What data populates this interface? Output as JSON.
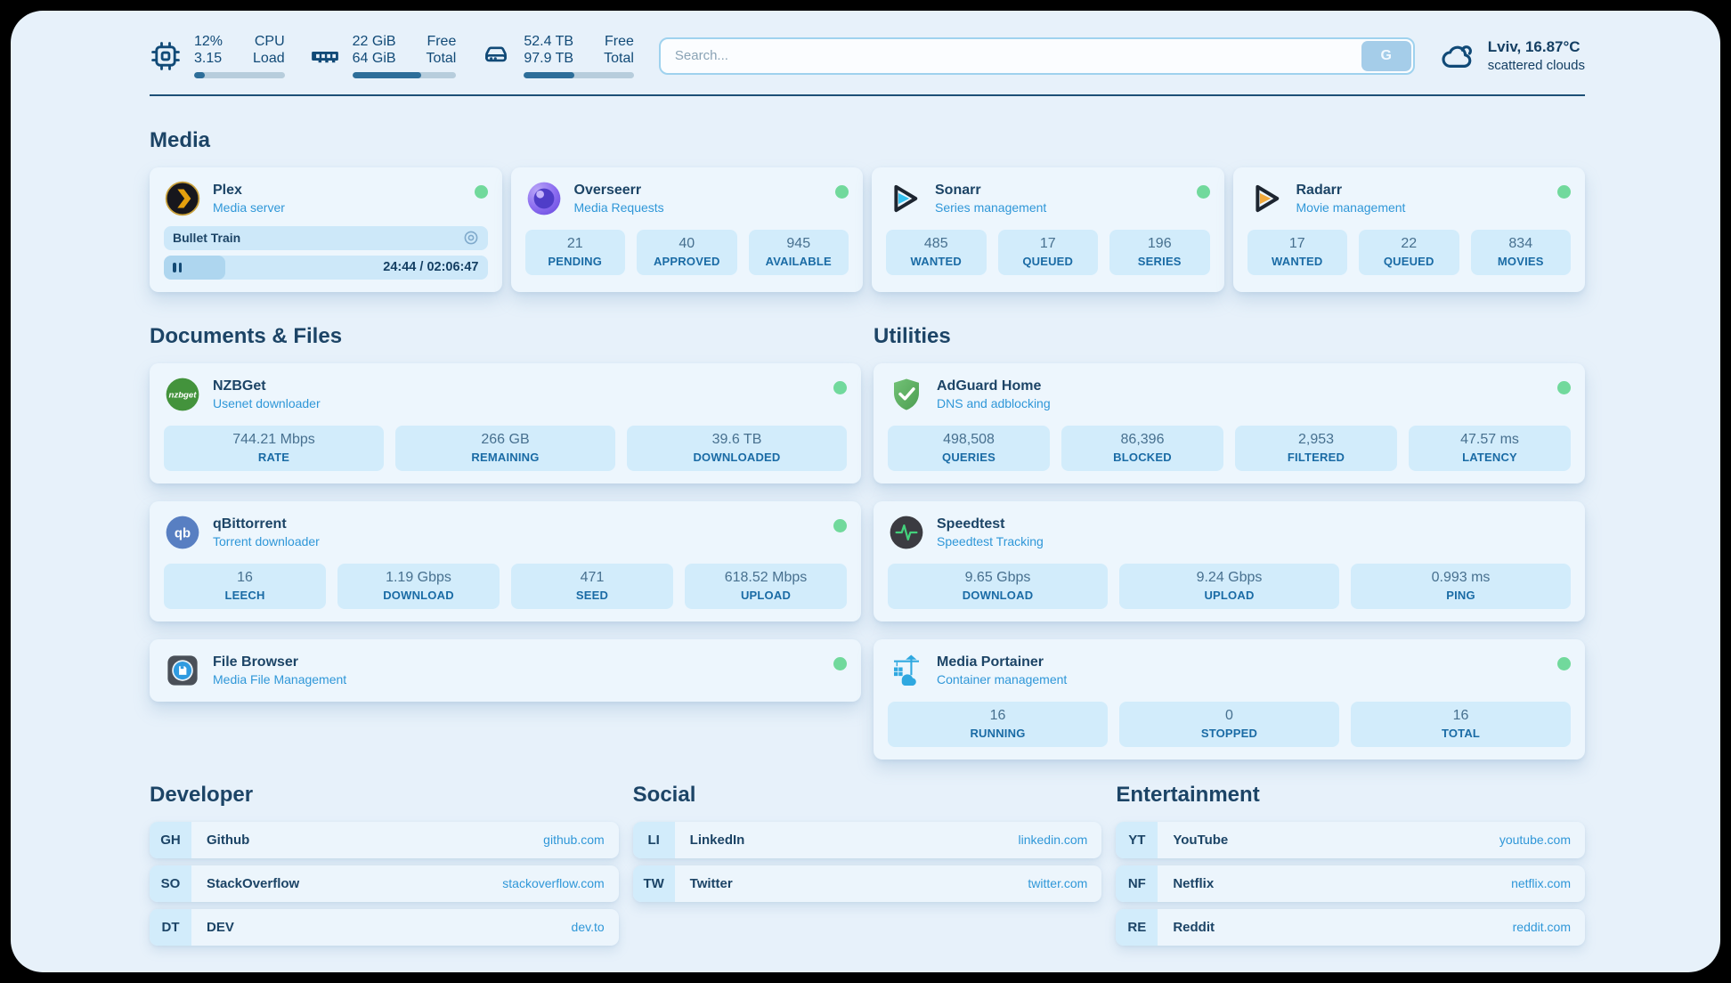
{
  "colors": {
    "accent": "#2f97d8",
    "navy": "#1c4466",
    "online_green": "#71d99c",
    "stat_box_bg": "#d2ecfb",
    "panel_bg": "#e7f1fa"
  },
  "header": {
    "system": {
      "cpu": {
        "icon": "cpu-chip-icon",
        "values": [
          "12%",
          "3.15"
        ],
        "labels": [
          "CPU",
          "Load"
        ],
        "bar_width": "12%"
      },
      "memory": {
        "icon": "ram-icon",
        "values": [
          "22 GiB",
          "64 GiB"
        ],
        "labels": [
          "Free",
          "Total"
        ],
        "bar_width": "66%"
      },
      "disk": {
        "icon": "disk-icon",
        "values": [
          "52.4 TB",
          "97.9 TB"
        ],
        "labels": [
          "Free",
          "Total"
        ],
        "bar_width": "46%"
      }
    },
    "search": {
      "placeholder": "Search...",
      "button": "G"
    },
    "weather": {
      "icon": "cloud-icon",
      "location": "Lviv, 16.87°C",
      "condition": "scattered clouds"
    }
  },
  "media": {
    "title": "Media",
    "plex": {
      "name": "Plex",
      "subtitle": "Media server",
      "status": "online",
      "now_playing": {
        "title": "Bullet Train",
        "time": "24:44 / 02:06:47",
        "progress_width": "19%"
      }
    },
    "overseerr": {
      "name": "Overseerr",
      "subtitle": "Media Requests",
      "status": "online",
      "stats": [
        {
          "value": "21",
          "label": "PENDING"
        },
        {
          "value": "40",
          "label": "APPROVED"
        },
        {
          "value": "945",
          "label": "AVAILABLE"
        }
      ]
    },
    "sonarr": {
      "name": "Sonarr",
      "subtitle": "Series management",
      "status": "online",
      "stats": [
        {
          "value": "485",
          "label": "WANTED"
        },
        {
          "value": "17",
          "label": "QUEUED"
        },
        {
          "value": "196",
          "label": "SERIES"
        }
      ]
    },
    "radarr": {
      "name": "Radarr",
      "subtitle": "Movie management",
      "status": "online",
      "stats": [
        {
          "value": "17",
          "label": "WANTED"
        },
        {
          "value": "22",
          "label": "QUEUED"
        },
        {
          "value": "834",
          "label": "MOVIES"
        }
      ]
    }
  },
  "documents": {
    "title": "Documents & Files",
    "nzbget": {
      "name": "NZBGet",
      "subtitle": "Usenet downloader",
      "status": "online",
      "icon_text": "nzbget",
      "stats": [
        {
          "value": "744.21 Mbps",
          "label": "RATE"
        },
        {
          "value": "266 GB",
          "label": "REMAINING"
        },
        {
          "value": "39.6 TB",
          "label": "DOWNLOADED"
        }
      ]
    },
    "qbittorrent": {
      "name": "qBittorrent",
      "subtitle": "Torrent downloader",
      "status": "online",
      "icon_text": "qb",
      "stats": [
        {
          "value": "16",
          "label": "LEECH"
        },
        {
          "value": "1.19 Gbps",
          "label": "DOWNLOAD"
        },
        {
          "value": "471",
          "label": "SEED"
        },
        {
          "value": "618.52 Mbps",
          "label": "UPLOAD"
        }
      ]
    },
    "filebrowser": {
      "name": "File Browser",
      "subtitle": "Media File Management",
      "status": "online"
    }
  },
  "utilities": {
    "title": "Utilities",
    "adguard": {
      "name": "AdGuard Home",
      "subtitle": "DNS and adblocking",
      "status": "online",
      "stats": [
        {
          "value": "498,508",
          "label": "QUERIES"
        },
        {
          "value": "86,396",
          "label": "BLOCKED"
        },
        {
          "value": "2,953",
          "label": "FILTERED"
        },
        {
          "value": "47.57 ms",
          "label": "LATENCY"
        }
      ]
    },
    "speedtest": {
      "name": "Speedtest",
      "subtitle": "Speedtest Tracking",
      "stats": [
        {
          "value": "9.65 Gbps",
          "label": "DOWNLOAD"
        },
        {
          "value": "9.24 Gbps",
          "label": "UPLOAD"
        },
        {
          "value": "0.993 ms",
          "label": "PING"
        }
      ]
    },
    "portainer": {
      "name": "Media Portainer",
      "subtitle": "Container management",
      "status": "online",
      "stats": [
        {
          "value": "16",
          "label": "RUNNING"
        },
        {
          "value": "0",
          "label": "STOPPED"
        },
        {
          "value": "16",
          "label": "TOTAL"
        }
      ]
    }
  },
  "bookmarks": {
    "developer": {
      "title": "Developer",
      "links": [
        {
          "abbr": "GH",
          "name": "Github",
          "url": "github.com"
        },
        {
          "abbr": "SO",
          "name": "StackOverflow",
          "url": "stackoverflow.com"
        },
        {
          "abbr": "DT",
          "name": "DEV",
          "url": "dev.to"
        }
      ]
    },
    "social": {
      "title": "Social",
      "links": [
        {
          "abbr": "LI",
          "name": "LinkedIn",
          "url": "linkedin.com"
        },
        {
          "abbr": "TW",
          "name": "Twitter",
          "url": "twitter.com"
        }
      ]
    },
    "entertainment": {
      "title": "Entertainment",
      "links": [
        {
          "abbr": "YT",
          "name": "YouTube",
          "url": "youtube.com"
        },
        {
          "abbr": "NF",
          "name": "Netflix",
          "url": "netflix.com"
        },
        {
          "abbr": "RE",
          "name": "Reddit",
          "url": "reddit.com"
        }
      ]
    }
  }
}
